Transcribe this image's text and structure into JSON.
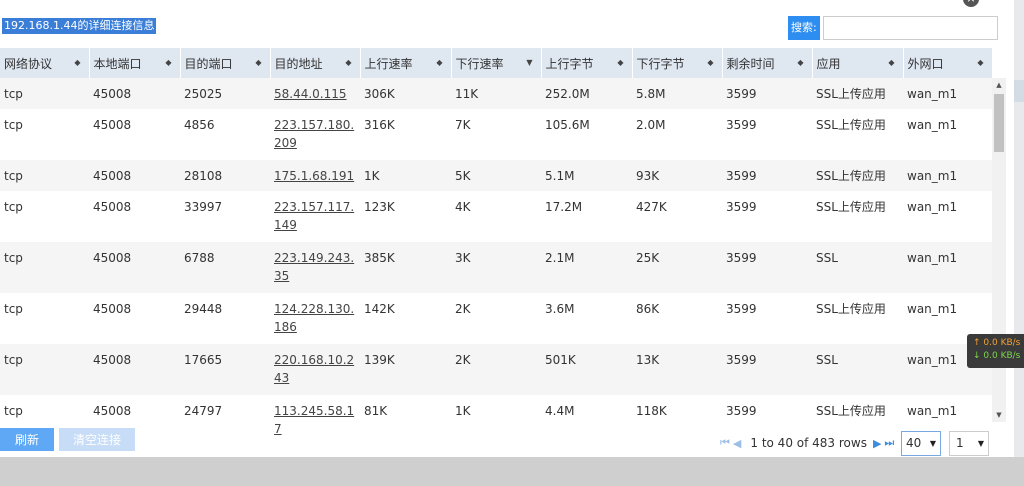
{
  "dialog": {
    "title": "192.168.1.44的详细连接信息",
    "close_icon": "×",
    "search_label": "搜索:",
    "search_value": ""
  },
  "table": {
    "columns": [
      {
        "label": "网络协议",
        "sort": "◆"
      },
      {
        "label": "本地端口",
        "sort": "◆"
      },
      {
        "label": "目的端口",
        "sort": "◆"
      },
      {
        "label": "目的地址",
        "sort": "◆"
      },
      {
        "label": "上行速率",
        "sort": "◆"
      },
      {
        "label": "下行速率",
        "sort": "▼"
      },
      {
        "label": "上行字节",
        "sort": "◆"
      },
      {
        "label": "下行字节",
        "sort": "◆"
      },
      {
        "label": "剩余时间",
        "sort": "◆"
      },
      {
        "label": "应用",
        "sort": "◆"
      },
      {
        "label": "外网口",
        "sort": "◆"
      }
    ],
    "rows": [
      [
        "tcp",
        "45008",
        "25025",
        "58.44.0.115",
        "306K",
        "11K",
        "252.0M",
        "5.8M",
        "3599",
        "SSL上传应用",
        "wan_m1"
      ],
      [
        "tcp",
        "45008",
        "4856",
        "223.157.180.209",
        "316K",
        "7K",
        "105.6M",
        "2.0M",
        "3599",
        "SSL上传应用",
        "wan_m1"
      ],
      [
        "tcp",
        "45008",
        "28108",
        "175.1.68.191",
        "1K",
        "5K",
        "5.1M",
        "93K",
        "3599",
        "SSL上传应用",
        "wan_m1"
      ],
      [
        "tcp",
        "45008",
        "33997",
        "223.157.117.149",
        "123K",
        "4K",
        "17.2M",
        "427K",
        "3599",
        "SSL上传应用",
        "wan_m1"
      ],
      [
        "tcp",
        "45008",
        "6788",
        "223.149.243.35",
        "385K",
        "3K",
        "2.1M",
        "25K",
        "3599",
        "SSL",
        "wan_m1"
      ],
      [
        "tcp",
        "45008",
        "29448",
        "124.228.130.186",
        "142K",
        "2K",
        "3.6M",
        "86K",
        "3599",
        "SSL上传应用",
        "wan_m1"
      ],
      [
        "tcp",
        "45008",
        "17665",
        "220.168.10.243",
        "139K",
        "2K",
        "501K",
        "13K",
        "3599",
        "SSL",
        "wan_m1"
      ],
      [
        "tcp",
        "45008",
        "24797",
        "113.245.58.17",
        "81K",
        "1K",
        "4.4M",
        "118K",
        "3599",
        "SSL上传应用",
        "wan_m1"
      ]
    ]
  },
  "buttons": {
    "refresh": "刷新",
    "clear": "清空连接"
  },
  "pagination": {
    "first_icon": "⏮",
    "prev_icon": "◀",
    "info": "1 to 40 of 483 rows",
    "next_icon": "▶",
    "last_icon": "⏭",
    "page_size": "40",
    "page_number": "1",
    "caret": "▼"
  },
  "speed_widget": {
    "up": "↑ 0.0 KB/s",
    "down": "↓ 0.0 KB/s"
  },
  "colors": {
    "header_bg": "#dfe7f1",
    "accent": "#2e8df0"
  }
}
